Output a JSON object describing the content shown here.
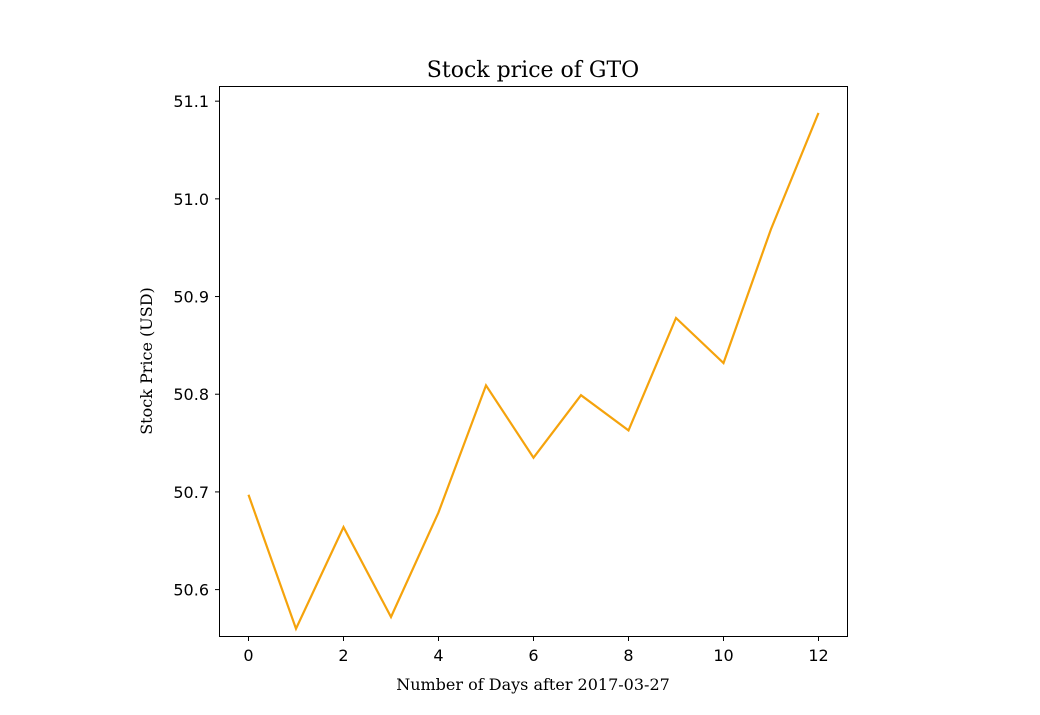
{
  "chart_data": {
    "type": "line",
    "title": "Stock price of GTO",
    "xlabel": "Number of Days after 2017-03-27",
    "ylabel": "Stock Price (USD)",
    "xlim": [
      -0.6,
      12.6
    ],
    "ylim": [
      50.5525,
      51.1145
    ],
    "x_ticks": [
      0,
      2,
      4,
      6,
      8,
      10,
      12
    ],
    "x_tick_labels": [
      "0",
      "2",
      "4",
      "6",
      "8",
      "10",
      "12"
    ],
    "y_ticks": [
      50.6,
      50.7,
      50.8,
      50.9,
      51.0,
      51.1
    ],
    "y_tick_labels": [
      "50.6",
      "50.7",
      "50.8",
      "50.9",
      "51.0",
      "51.1"
    ],
    "grid": false,
    "series": [
      {
        "color": "#f5a30c",
        "x": [
          0,
          1,
          2,
          3,
          4,
          5,
          6,
          7,
          8,
          9,
          10,
          11,
          12
        ],
        "y": [
          50.697,
          50.56,
          50.664,
          50.572,
          50.679,
          50.809,
          50.735,
          50.799,
          50.763,
          50.878,
          50.832,
          50.969,
          51.088
        ]
      }
    ]
  }
}
